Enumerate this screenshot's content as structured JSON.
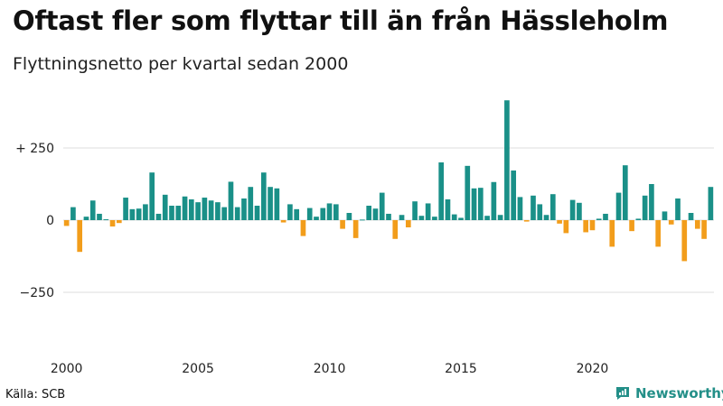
{
  "header": {
    "title": "Oftast fler som flyttar till än från Hässleholm",
    "subtitle": "Flyttningsnetto per kvartal sedan 2000"
  },
  "footer": {
    "source": "Källa: SCB",
    "brand": "Newsworthy"
  },
  "colors": {
    "positive": "#1a9088",
    "negative": "#f29d1b",
    "grid": "#dddddd",
    "brand": "#238f88"
  },
  "chart_data": {
    "type": "bar",
    "title": "Oftast fler som flyttar till än från Hässleholm",
    "subtitle": "Flyttningsnetto per kvartal sedan 2000",
    "xlabel": "",
    "ylabel": "",
    "ylim": [
      -400,
      430
    ],
    "yticks": [
      250,
      0,
      -250
    ],
    "ytick_labels": [
      "+ 250",
      "0",
      "−250"
    ],
    "xticks": [
      "2000",
      "2005",
      "2010",
      "2015",
      "2020"
    ],
    "x_start_year": 2000,
    "grid": true,
    "values": [
      -20,
      45,
      -110,
      12,
      68,
      22,
      3,
      -22,
      -10,
      78,
      38,
      40,
      55,
      165,
      22,
      88,
      50,
      50,
      82,
      72,
      62,
      78,
      68,
      62,
      45,
      133,
      45,
      75,
      115,
      50,
      165,
      115,
      110,
      -8,
      55,
      38,
      -55,
      42,
      12,
      42,
      58,
      55,
      -30,
      25,
      -62,
      2,
      50,
      40,
      95,
      22,
      -65,
      18,
      -25,
      65,
      15,
      58,
      12,
      200,
      72,
      20,
      8,
      188,
      110,
      112,
      15,
      132,
      18,
      415,
      172,
      80,
      -5,
      85,
      55,
      18,
      90,
      -12,
      -45,
      70,
      60,
      -42,
      -35,
      5,
      22,
      -92,
      95,
      190,
      -38,
      5,
      85,
      125,
      -92,
      30,
      -15,
      75,
      -142,
      25,
      -30,
      -65,
      115
    ]
  }
}
